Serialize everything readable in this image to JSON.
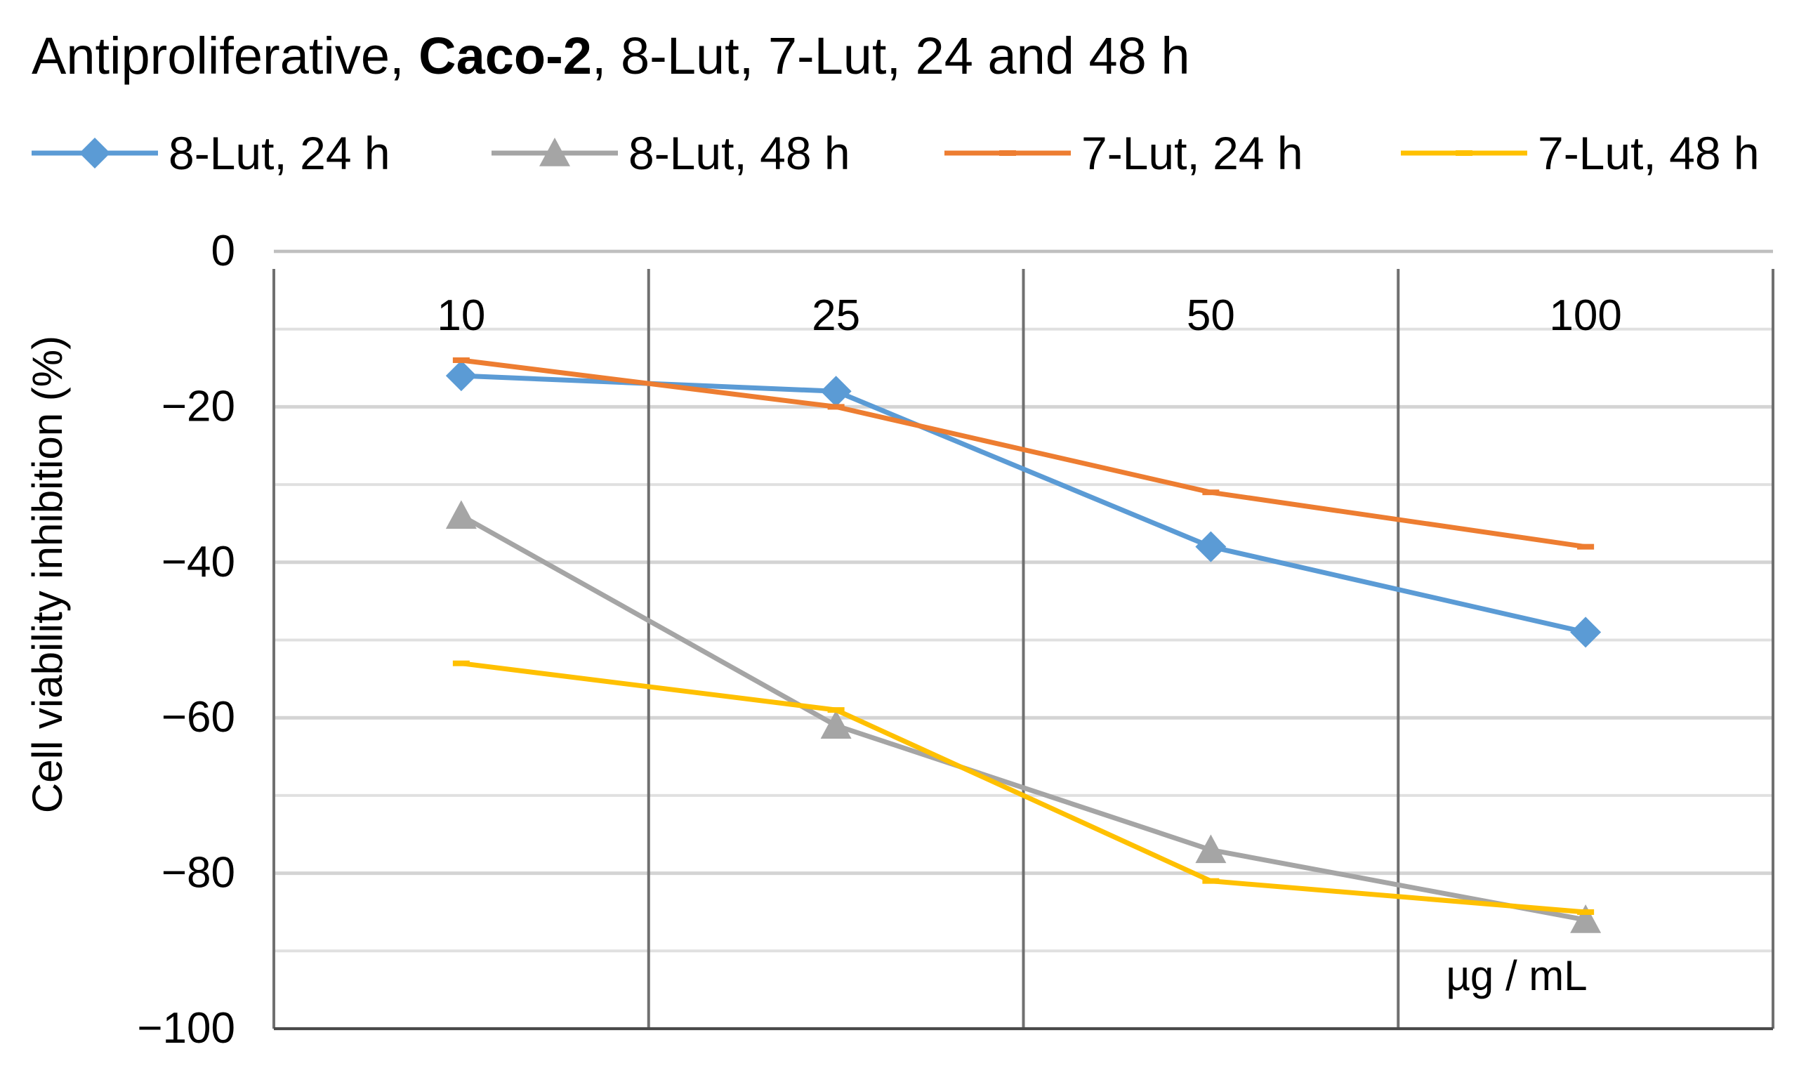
{
  "title": {
    "prefix": "Antiproliferative, ",
    "bold": "Caco-2",
    "suffix": ", 8-Lut, 7-Lut, 24 and 48 h"
  },
  "chart_data": {
    "type": "line",
    "categories": [
      "10",
      "25",
      "50",
      "100"
    ],
    "series": [
      {
        "name": "8-Lut, 24 h",
        "color": "#5B9BD5",
        "marker": "diamond",
        "values": [
          -16,
          -18,
          -38,
          -49
        ]
      },
      {
        "name": "8-Lut, 48 h",
        "color": "#A5A5A5",
        "marker": "triangle",
        "values": [
          -34,
          -61,
          -77,
          -86
        ]
      },
      {
        "name": "7-Lut, 24 h",
        "color": "#ED7D31",
        "marker": "dash",
        "values": [
          -14,
          -20,
          -31,
          -38
        ]
      },
      {
        "name": "7-Lut, 48 h",
        "color": "#FFC000",
        "marker": "dash",
        "values": [
          -53,
          -59,
          -81,
          -85
        ]
      }
    ],
    "ylabel": "Cell viability inhibition (%)",
    "unit_label": "µg / mL",
    "ylim": [
      -100,
      0
    ],
    "yticks": [
      "0",
      "−20",
      "−40",
      "−60",
      "−80",
      "−100"
    ],
    "ytick_values": [
      0,
      -20,
      -40,
      -60,
      -80,
      -100
    ],
    "minor_grid_values": [
      -10,
      -30,
      -50,
      -70,
      -90
    ],
    "grid": true,
    "legend_position": "top"
  }
}
